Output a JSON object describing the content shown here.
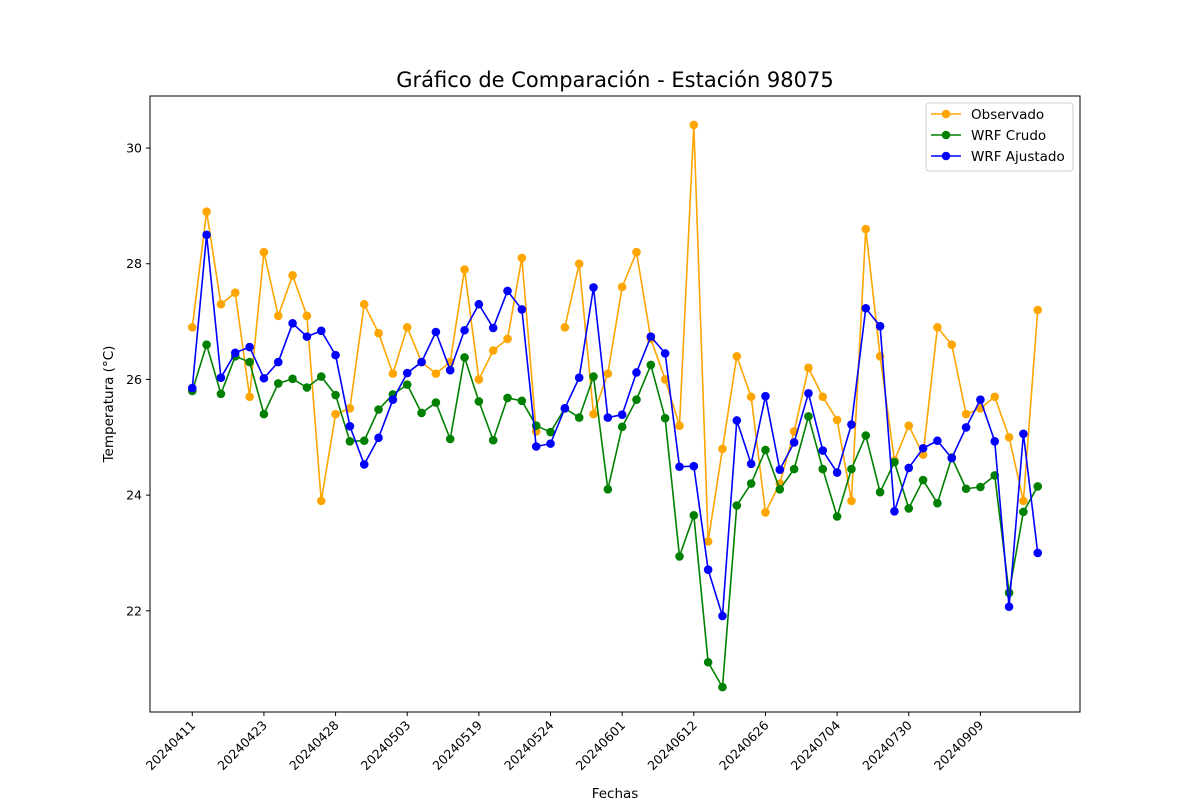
{
  "chart_data": {
    "type": "line",
    "title": "Gráfico de Comparación - Estación 98075",
    "xlabel": "Fechas",
    "ylabel": "Temperatura (°C)",
    "ylim": [
      20.25,
      30.9
    ],
    "yticks": [
      22,
      24,
      26,
      28,
      30
    ],
    "x_tick_labels": [
      "20240411",
      "20240423",
      "20240428",
      "20240503",
      "20240519",
      "20240524",
      "20240601",
      "20240612",
      "20240626",
      "20240704",
      "20240730",
      "20240909"
    ],
    "x_tick_interval": 5,
    "grid": false,
    "legend_position": "top-right",
    "series": [
      {
        "name": "Observado",
        "color": "#ffa500",
        "values": [
          26.9,
          28.9,
          27.3,
          27.5,
          25.7,
          28.2,
          27.1,
          27.8,
          27.1,
          23.9,
          25.4,
          25.5,
          27.3,
          26.8,
          26.1,
          26.9,
          26.3,
          26.1,
          26.3,
          27.9,
          26.0,
          26.5,
          26.7,
          28.1,
          25.1,
          null,
          26.9,
          28.0,
          25.4,
          26.1,
          27.6,
          28.2,
          26.7,
          26.0,
          25.2,
          30.4,
          23.2,
          24.8,
          26.4,
          25.7,
          23.7,
          24.2,
          25.1,
          26.2,
          25.7,
          25.3,
          23.9,
          28.6,
          26.4,
          24.6,
          25.2,
          24.7,
          26.9,
          26.6,
          25.4,
          25.5,
          25.7,
          25.0,
          23.9,
          27.2
        ]
      },
      {
        "name": "WRF Crudo",
        "color": "#008000",
        "values": [
          25.8,
          26.6,
          25.75,
          26.4,
          26.3,
          25.4,
          25.93,
          26.01,
          25.86,
          26.05,
          25.73,
          24.93,
          24.94,
          25.48,
          25.74,
          25.91,
          25.42,
          25.6,
          24.97,
          26.38,
          25.62,
          24.95,
          25.68,
          25.63,
          25.2,
          25.09,
          25.5,
          25.34,
          26.05,
          24.1,
          25.18,
          25.65,
          26.25,
          25.33,
          22.94,
          23.65,
          21.11,
          20.68,
          23.82,
          24.2,
          24.78,
          24.1,
          24.45,
          25.36,
          24.45,
          23.63,
          24.45,
          25.03,
          24.05,
          24.57,
          23.77,
          24.26,
          23.86,
          24.65,
          24.11,
          24.14,
          24.34,
          22.31,
          23.71,
          24.15
        ]
      },
      {
        "name": "WRF Ajustado",
        "color": "#0000ff",
        "values": [
          25.85,
          28.5,
          26.03,
          26.46,
          26.56,
          26.02,
          26.3,
          26.97,
          26.74,
          26.84,
          26.42,
          25.19,
          24.53,
          24.99,
          25.65,
          26.11,
          26.3,
          26.82,
          26.16,
          26.85,
          27.3,
          26.89,
          27.53,
          27.21,
          24.84,
          24.89,
          25.5,
          26.03,
          27.59,
          25.34,
          25.39,
          26.12,
          26.74,
          26.45,
          24.49,
          24.5,
          22.71,
          21.91,
          25.29,
          24.54,
          25.71,
          24.44,
          24.91,
          25.76,
          24.77,
          24.39,
          25.22,
          27.23,
          26.92,
          23.72,
          24.47,
          24.81,
          24.94,
          24.64,
          25.17,
          25.65,
          24.93,
          22.07,
          25.06,
          23.0
        ]
      }
    ]
  }
}
